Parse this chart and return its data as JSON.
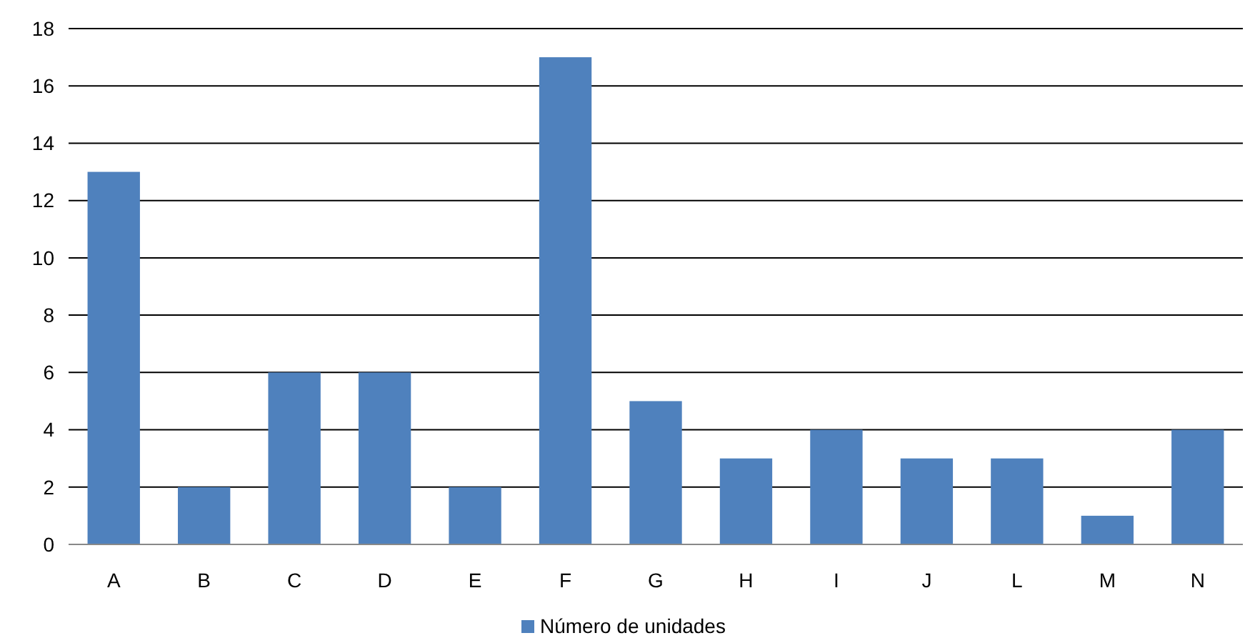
{
  "chart_data": {
    "type": "bar",
    "categories": [
      "A",
      "B",
      "C",
      "D",
      "E",
      "F",
      "G",
      "H",
      "I",
      "J",
      "L",
      "M",
      "N"
    ],
    "series": [
      {
        "name": "Número de unidades",
        "color": "#4f81bd",
        "values": [
          13,
          2,
          6,
          6,
          2,
          17,
          5,
          3,
          4,
          3,
          3,
          1,
          4
        ]
      }
    ],
    "ylim": [
      0,
      18
    ],
    "yticks": [
      0,
      2,
      4,
      6,
      8,
      10,
      12,
      14,
      16,
      18
    ],
    "grid": "y",
    "legend": "bottom"
  }
}
